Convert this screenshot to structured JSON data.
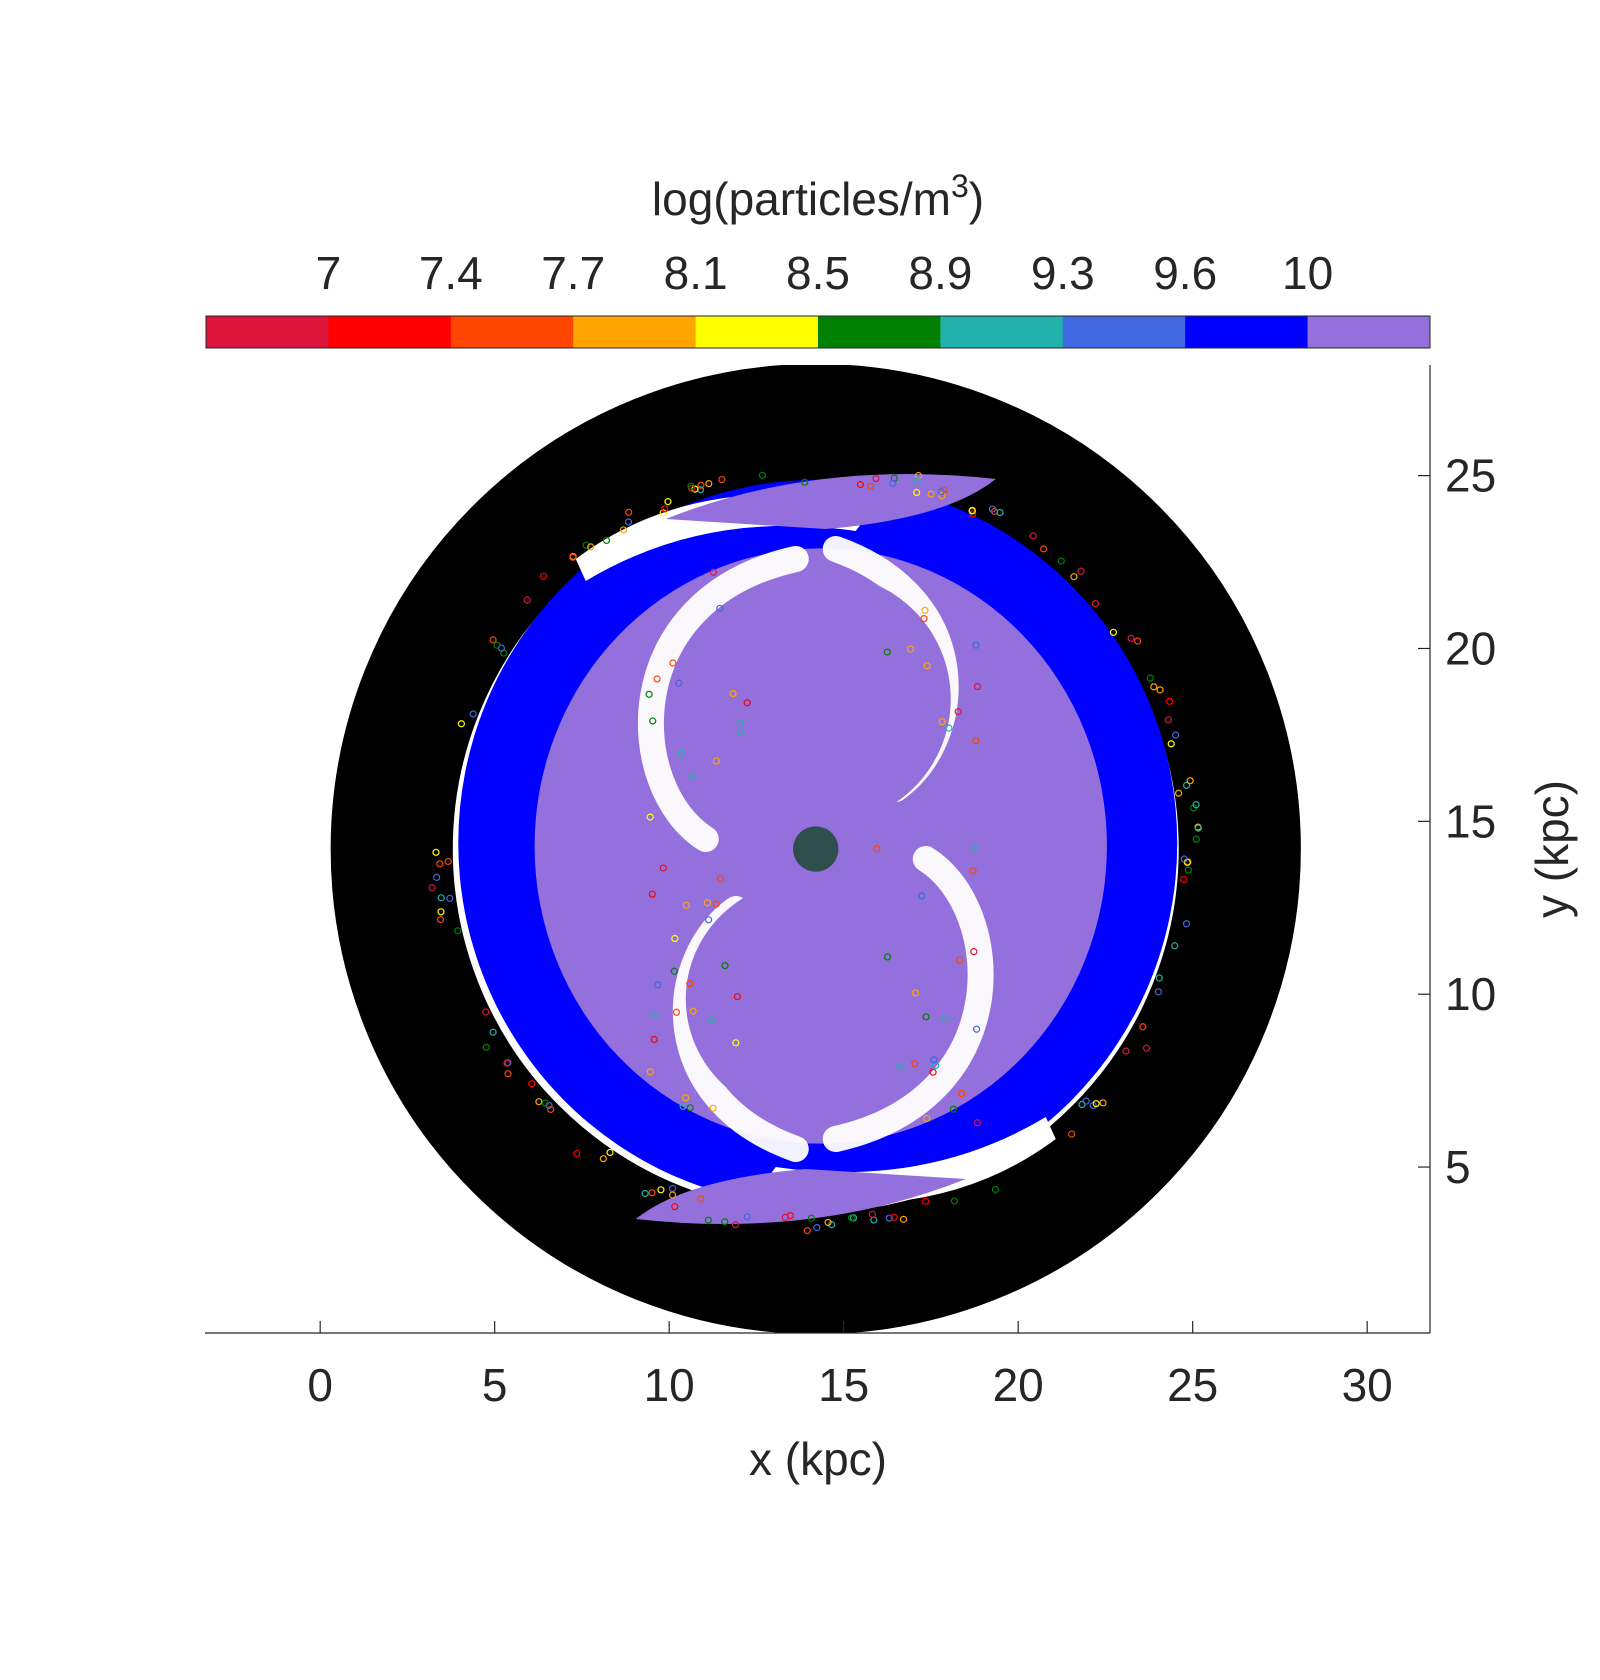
{
  "chart_data": {
    "type": "scatter",
    "title": "",
    "xlabel": "x (kpc)",
    "ylabel": "y (kpc)",
    "xlim": [
      -3.3,
      31.8
    ],
    "ylim": [
      0.2,
      28.2
    ],
    "xticks": [
      "0",
      "5",
      "10",
      "15",
      "20",
      "25",
      "30"
    ],
    "yticks": [
      "5",
      "10",
      "15",
      "20",
      "25"
    ],
    "grid": false,
    "colorbar": {
      "location": "top",
      "label_base": "log(particles/m",
      "label_exp": "3",
      "label_close": ")",
      "tick_labels": [
        "7",
        "7.4",
        "7.7",
        "8.1",
        "8.5",
        "8.9",
        "9.3",
        "9.6",
        "10"
      ],
      "colors": [
        "#dc143c",
        "#ff0000",
        "#ff4500",
        "#ffa500",
        "#ffff00",
        "#008000",
        "#20b2aa",
        "#4169e1",
        "#0000ff",
        "#9370db"
      ]
    },
    "center": [
      14.2,
      14.2
    ],
    "regions": [
      {
        "name": "outer ring",
        "color": "#000000",
        "r_inner": 10.4,
        "r_outer": 13.9
      },
      {
        "name": "blue disk",
        "color": "#0000ff",
        "radius": 10.3
      },
      {
        "name": "lavender core",
        "color": "#9370db",
        "radius": 8.2
      },
      {
        "name": "central object",
        "color": "#2f4f4f",
        "radius": 0.65
      }
    ]
  }
}
